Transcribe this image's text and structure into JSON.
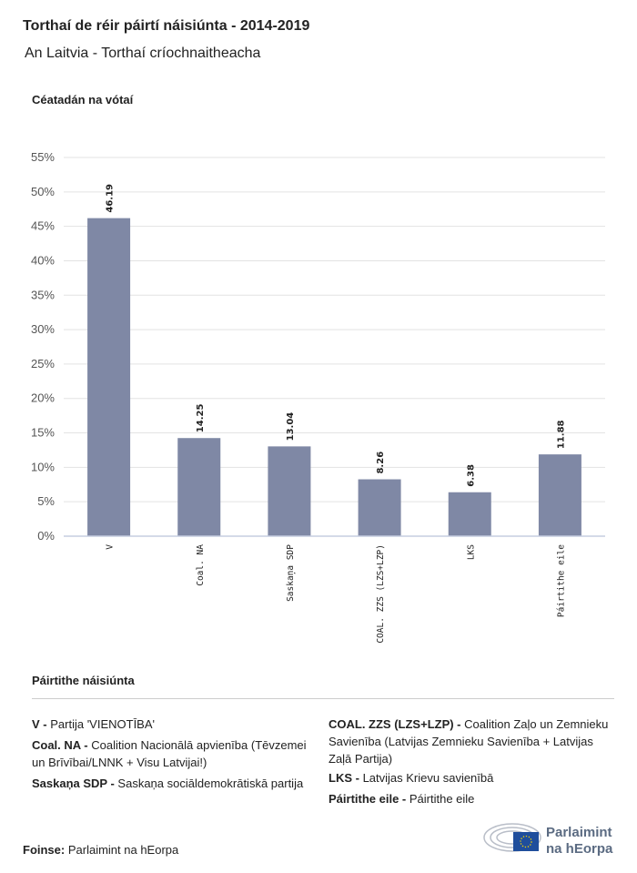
{
  "title": "Torthaí de réir páirtí náisiúnta - 2014-2019",
  "subtitle": "An Laitvia - Torthaí críochnaitheacha",
  "chart_data": {
    "type": "bar",
    "ylabel": "Céatadán na vótaí",
    "categories": [
      "V",
      "Coal. NA",
      "Saskaņa SDP",
      "COAL. ZZS (LZS+LZP)",
      "LKS",
      "Páirtithe eile"
    ],
    "values": [
      46.19,
      14.25,
      13.04,
      8.26,
      6.38,
      11.88
    ],
    "value_labels": [
      "46.19",
      "14.25",
      "13.04",
      "8.26",
      "6.38",
      "11.88"
    ],
    "ylim": [
      0,
      55
    ],
    "yticks": [
      "0%",
      "5%",
      "10%",
      "15%",
      "20%",
      "25%",
      "30%",
      "35%",
      "40%",
      "45%",
      "50%",
      "55%"
    ],
    "grid": true,
    "bar_color": "#7f88a5"
  },
  "legend": {
    "title": "Páirtithe náisiúnta",
    "items": [
      {
        "abbr": "V - ",
        "name": "Partija 'VIENOTĪBA'"
      },
      {
        "abbr": "Coal. NA - ",
        "name": "Coalition Nacionālā apvienība (Tēvzemei un Brīvībai/LNNK + Visu Latvijai!)"
      },
      {
        "abbr": "Saskaņa SDP - ",
        "name": "Saskaņa sociāldemokrātiskā partija"
      },
      {
        "abbr": "COAL. ZZS (LZS+LZP) - ",
        "name": "Coalition Zaļo un Zemnieku Savienība (Latvijas Zemnieku Savienība + Latvijas Zaļā Partija)"
      },
      {
        "abbr": "LKS - ",
        "name": "Latvijas Krievu savienībā"
      },
      {
        "abbr": "Páirtithe eile - ",
        "name": "Páirtithe eile"
      }
    ]
  },
  "source": {
    "label": "Foinse:",
    "value": " Parlaimint na hEorpa"
  },
  "logo": {
    "line1": "Parlaimint",
    "line2": "na hEorpa"
  }
}
